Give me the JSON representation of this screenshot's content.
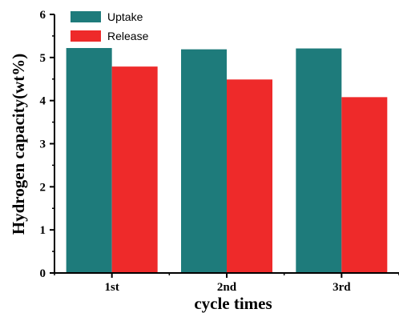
{
  "chart_data": {
    "type": "bar",
    "categories": [
      "1st",
      "2nd",
      "3rd"
    ],
    "series": [
      {
        "name": "Uptake",
        "values": [
          5.22,
          5.19,
          5.21
        ],
        "color": "#1e7b7b"
      },
      {
        "name": "Release",
        "values": [
          4.79,
          4.49,
          4.08
        ],
        "color": "#ee2a2a"
      }
    ],
    "title": "",
    "xlabel": "cycle times",
    "ylabel": "Hydrogen capacity(wt%)",
    "ylim": [
      0,
      6
    ],
    "yticks": [
      "0",
      "1",
      "2",
      "3",
      "4",
      "5",
      "6"
    ],
    "grid": false,
    "legend_position": "top-left"
  }
}
